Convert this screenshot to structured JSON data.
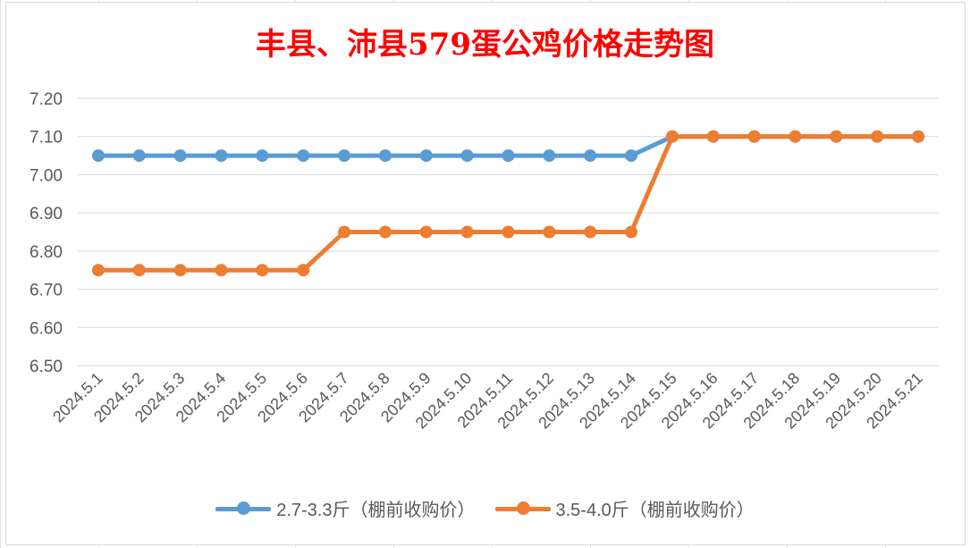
{
  "title": "丰县、沛县579蛋公鸡价格走势图",
  "chart_data": {
    "type": "line",
    "title": "丰县、沛县579蛋公鸡价格走势图",
    "categories": [
      "2024.5.1",
      "2024.5.2",
      "2024.5.3",
      "2024.5.4",
      "2024.5.5",
      "2024.5.6",
      "2024.5.7",
      "2024.5.8",
      "2024.5.9",
      "2024.5.10",
      "2024.5.11",
      "2024.5.12",
      "2024.5.13",
      "2024.5.14",
      "2024.5.15",
      "2024.5.16",
      "2024.5.17",
      "2024.5.18",
      "2024.5.19",
      "2024.5.20",
      "2024.5.21"
    ],
    "yticks": [
      "6.50",
      "6.60",
      "6.70",
      "6.80",
      "6.90",
      "7.00",
      "7.10",
      "7.20"
    ],
    "ylim": [
      6.5,
      7.2
    ],
    "grid": true,
    "legend_position": "bottom",
    "series": [
      {
        "name": "2.7-3.3斤（棚前收购价）",
        "color": "#5b9bd5",
        "values": [
          7.05,
          7.05,
          7.05,
          7.05,
          7.05,
          7.05,
          7.05,
          7.05,
          7.05,
          7.05,
          7.05,
          7.05,
          7.05,
          7.05,
          7.1,
          7.1,
          7.1,
          7.1,
          7.1,
          7.1,
          7.1
        ]
      },
      {
        "name": "3.5-4.0斤（棚前收购价）",
        "color": "#ed7d31",
        "values": [
          6.75,
          6.75,
          6.75,
          6.75,
          6.75,
          6.75,
          6.85,
          6.85,
          6.85,
          6.85,
          6.85,
          6.85,
          6.85,
          6.85,
          7.1,
          7.1,
          7.1,
          7.1,
          7.1,
          7.1,
          7.1
        ]
      }
    ]
  }
}
